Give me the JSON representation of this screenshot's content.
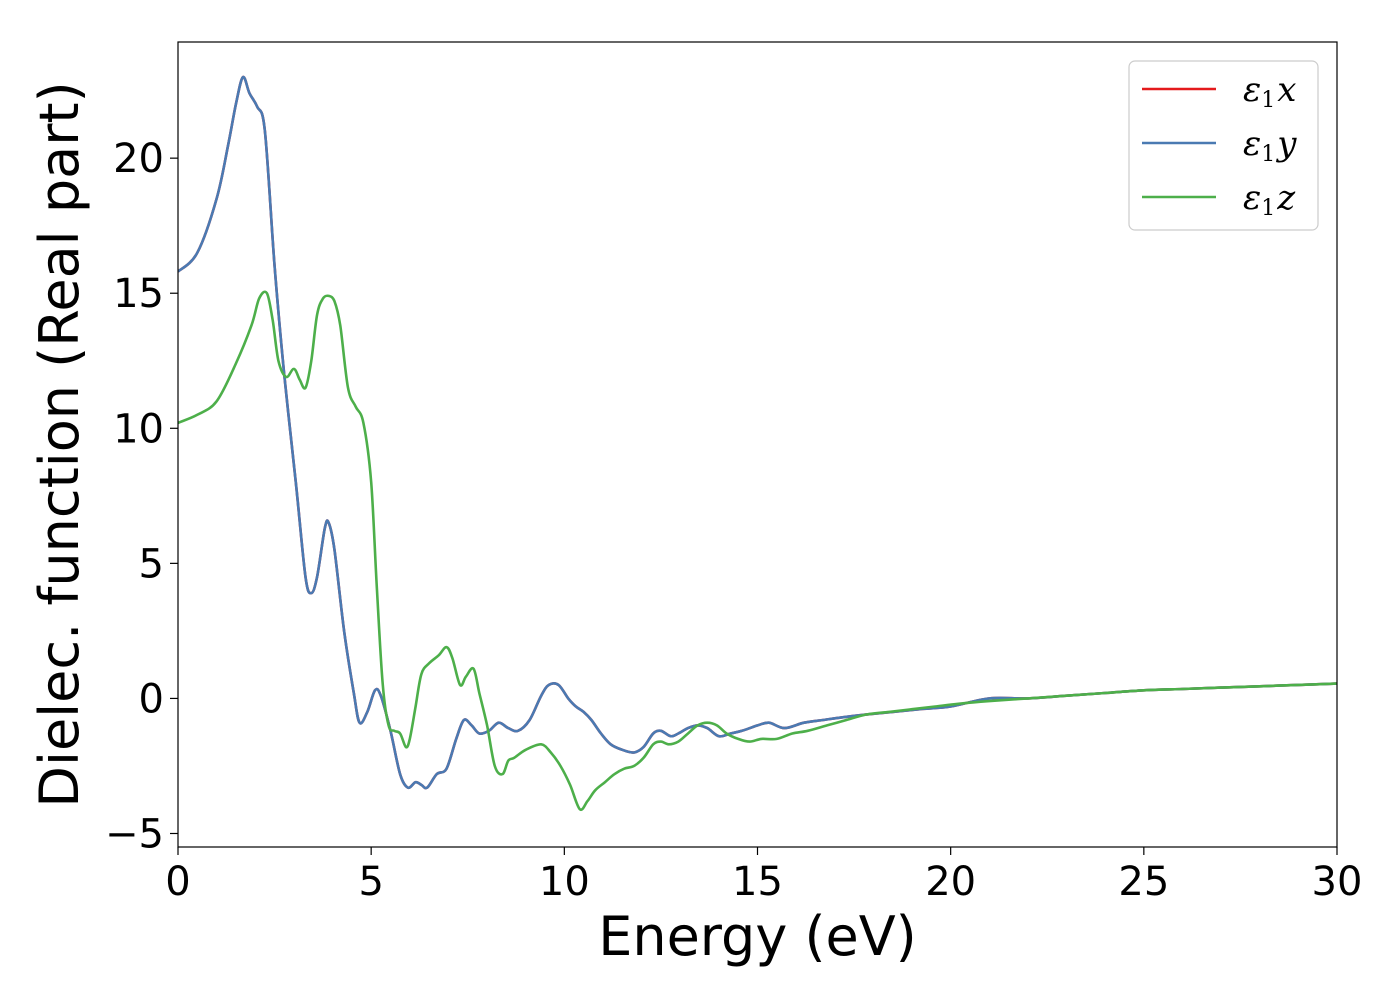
{
  "chart_data": {
    "type": "line",
    "xlabel": "Energy (eV)",
    "ylabel": "Dielec. function (Real part)",
    "xlim": [
      0,
      30
    ],
    "ylim": [
      -5.5,
      24.3
    ],
    "xticks": [
      0,
      5,
      10,
      15,
      20,
      25,
      30
    ],
    "yticks": [
      -5,
      0,
      5,
      10,
      15,
      20
    ],
    "xtick_labels": [
      "0",
      "5",
      "10",
      "15",
      "20",
      "25",
      "30"
    ],
    "ytick_labels": [
      "−5",
      "0",
      "5",
      "10",
      "15",
      "20"
    ],
    "grid": false,
    "legend_position": "top-right",
    "series": [
      {
        "name": "ε1x",
        "legend_symbol": "ε",
        "legend_sub": "1",
        "legend_var": "x",
        "color": "#e41a1c",
        "x": [
          0,
          0.5,
          1.0,
          1.3,
          1.5,
          1.68,
          1.85,
          2.05,
          2.25,
          2.5,
          2.75,
          3.05,
          3.3,
          3.45,
          3.6,
          3.8,
          3.9,
          4.05,
          4.3,
          4.55,
          4.7,
          4.9,
          5.1,
          5.25,
          5.5,
          5.75,
          5.95,
          6.15,
          6.3,
          6.45,
          6.7,
          6.95,
          7.2,
          7.4,
          7.6,
          7.8,
          8.05,
          8.3,
          8.55,
          8.8,
          9.1,
          9.4,
          9.6,
          9.85,
          10.1,
          10.3,
          10.5,
          10.7,
          10.95,
          11.2,
          11.5,
          11.8,
          12.05,
          12.3,
          12.5,
          12.75,
          12.95,
          13.2,
          13.45,
          13.7,
          14.0,
          14.3,
          14.6,
          15.0,
          15.3,
          15.7,
          16.2,
          16.7,
          17.2,
          17.8,
          18.5,
          19.2,
          20.0,
          21.0,
          22.0,
          23.0,
          24.0,
          25.0,
          26.0,
          27.0,
          28.0,
          29.0,
          30.0
        ],
        "y": [
          15.8,
          16.5,
          18.5,
          20.5,
          22.0,
          23.0,
          22.4,
          21.9,
          21.0,
          16.0,
          12.0,
          8.0,
          4.5,
          3.9,
          4.5,
          6.3,
          6.5,
          5.5,
          2.5,
          0.2,
          -0.9,
          -0.5,
          0.3,
          0.1,
          -1.2,
          -2.8,
          -3.3,
          -3.1,
          -3.2,
          -3.3,
          -2.8,
          -2.6,
          -1.5,
          -0.8,
          -1.0,
          -1.3,
          -1.2,
          -0.9,
          -1.1,
          -1.2,
          -0.8,
          0.1,
          0.5,
          0.5,
          0.0,
          -0.3,
          -0.5,
          -0.8,
          -1.3,
          -1.7,
          -1.9,
          -2.0,
          -1.8,
          -1.3,
          -1.2,
          -1.4,
          -1.3,
          -1.1,
          -1.0,
          -1.1,
          -1.4,
          -1.3,
          -1.2,
          -1.0,
          -0.9,
          -1.1,
          -0.9,
          -0.8,
          -0.7,
          -0.6,
          -0.5,
          -0.4,
          -0.3,
          0.0,
          0.0,
          0.1,
          0.2,
          0.3,
          0.35,
          0.4,
          0.45,
          0.5,
          0.55
        ]
      },
      {
        "name": "ε1y",
        "legend_symbol": "ε",
        "legend_sub": "1",
        "legend_var": "y",
        "color": "#4a7ab2",
        "x": [
          0,
          0.5,
          1.0,
          1.3,
          1.5,
          1.68,
          1.85,
          2.05,
          2.25,
          2.5,
          2.75,
          3.05,
          3.3,
          3.45,
          3.6,
          3.8,
          3.9,
          4.05,
          4.3,
          4.55,
          4.7,
          4.9,
          5.1,
          5.25,
          5.5,
          5.75,
          5.95,
          6.15,
          6.3,
          6.45,
          6.7,
          6.95,
          7.2,
          7.4,
          7.6,
          7.8,
          8.05,
          8.3,
          8.55,
          8.8,
          9.1,
          9.4,
          9.6,
          9.85,
          10.1,
          10.3,
          10.5,
          10.7,
          10.95,
          11.2,
          11.5,
          11.8,
          12.05,
          12.3,
          12.5,
          12.75,
          12.95,
          13.2,
          13.45,
          13.7,
          14.0,
          14.3,
          14.6,
          15.0,
          15.3,
          15.7,
          16.2,
          16.7,
          17.2,
          17.8,
          18.5,
          19.2,
          20.0,
          21.0,
          22.0,
          23.0,
          24.0,
          25.0,
          26.0,
          27.0,
          28.0,
          29.0,
          30.0
        ],
        "y": [
          15.8,
          16.5,
          18.5,
          20.5,
          22.0,
          23.0,
          22.4,
          21.9,
          21.0,
          16.0,
          12.0,
          8.0,
          4.5,
          3.9,
          4.5,
          6.3,
          6.5,
          5.5,
          2.5,
          0.2,
          -0.9,
          -0.5,
          0.3,
          0.1,
          -1.2,
          -2.8,
          -3.3,
          -3.1,
          -3.2,
          -3.3,
          -2.8,
          -2.6,
          -1.5,
          -0.8,
          -1.0,
          -1.3,
          -1.2,
          -0.9,
          -1.1,
          -1.2,
          -0.8,
          0.1,
          0.5,
          0.5,
          0.0,
          -0.3,
          -0.5,
          -0.8,
          -1.3,
          -1.7,
          -1.9,
          -2.0,
          -1.8,
          -1.3,
          -1.2,
          -1.4,
          -1.3,
          -1.1,
          -1.0,
          -1.1,
          -1.4,
          -1.3,
          -1.2,
          -1.0,
          -0.9,
          -1.1,
          -0.9,
          -0.8,
          -0.7,
          -0.6,
          -0.5,
          -0.4,
          -0.3,
          0.0,
          0.0,
          0.1,
          0.2,
          0.3,
          0.35,
          0.4,
          0.45,
          0.5,
          0.55
        ]
      },
      {
        "name": "ε1z",
        "legend_symbol": "ε",
        "legend_sub": "1",
        "legend_var": "z",
        "color": "#4daf4a",
        "x": [
          0,
          0.5,
          1.0,
          1.5,
          1.9,
          2.1,
          2.3,
          2.45,
          2.6,
          2.8,
          3.0,
          3.15,
          3.3,
          3.45,
          3.6,
          3.75,
          3.9,
          4.05,
          4.2,
          4.4,
          4.6,
          4.8,
          5.0,
          5.15,
          5.3,
          5.45,
          5.6,
          5.75,
          5.9,
          6.0,
          6.15,
          6.3,
          6.5,
          6.75,
          6.95,
          7.1,
          7.3,
          7.45,
          7.65,
          7.8,
          8.0,
          8.2,
          8.4,
          8.55,
          8.7,
          9.0,
          9.4,
          9.65,
          9.9,
          10.15,
          10.4,
          10.6,
          10.8,
          11.05,
          11.3,
          11.55,
          11.8,
          12.05,
          12.3,
          12.5,
          12.7,
          12.95,
          13.2,
          13.45,
          13.7,
          13.95,
          14.2,
          14.5,
          14.8,
          15.1,
          15.5,
          15.9,
          16.3,
          16.8,
          17.3,
          17.8,
          18.4,
          19.0,
          19.6,
          20.2,
          21.0,
          22.0,
          23.0,
          24.0,
          25.0,
          26.0,
          27.0,
          28.0,
          29.0,
          30.0
        ],
        "y": [
          10.2,
          10.5,
          11.0,
          12.4,
          13.8,
          14.8,
          15.0,
          14.0,
          12.5,
          11.9,
          12.2,
          11.8,
          11.5,
          12.5,
          14.2,
          14.8,
          14.9,
          14.7,
          13.8,
          11.5,
          10.8,
          10.2,
          8.0,
          4.0,
          0.5,
          -1.0,
          -1.2,
          -1.3,
          -1.8,
          -1.5,
          -0.3,
          0.9,
          1.3,
          1.6,
          1.9,
          1.5,
          0.5,
          0.8,
          1.1,
          0.2,
          -1.0,
          -2.5,
          -2.8,
          -2.3,
          -2.2,
          -1.9,
          -1.7,
          -2.0,
          -2.5,
          -3.2,
          -4.1,
          -3.8,
          -3.4,
          -3.1,
          -2.8,
          -2.6,
          -2.5,
          -2.2,
          -1.7,
          -1.6,
          -1.7,
          -1.6,
          -1.3,
          -1.0,
          -0.9,
          -1.0,
          -1.3,
          -1.5,
          -1.6,
          -1.5,
          -1.5,
          -1.3,
          -1.2,
          -1.0,
          -0.8,
          -0.6,
          -0.5,
          -0.4,
          -0.3,
          -0.2,
          -0.1,
          0.0,
          0.1,
          0.2,
          0.3,
          0.35,
          0.4,
          0.45,
          0.5,
          0.55
        ]
      }
    ]
  }
}
